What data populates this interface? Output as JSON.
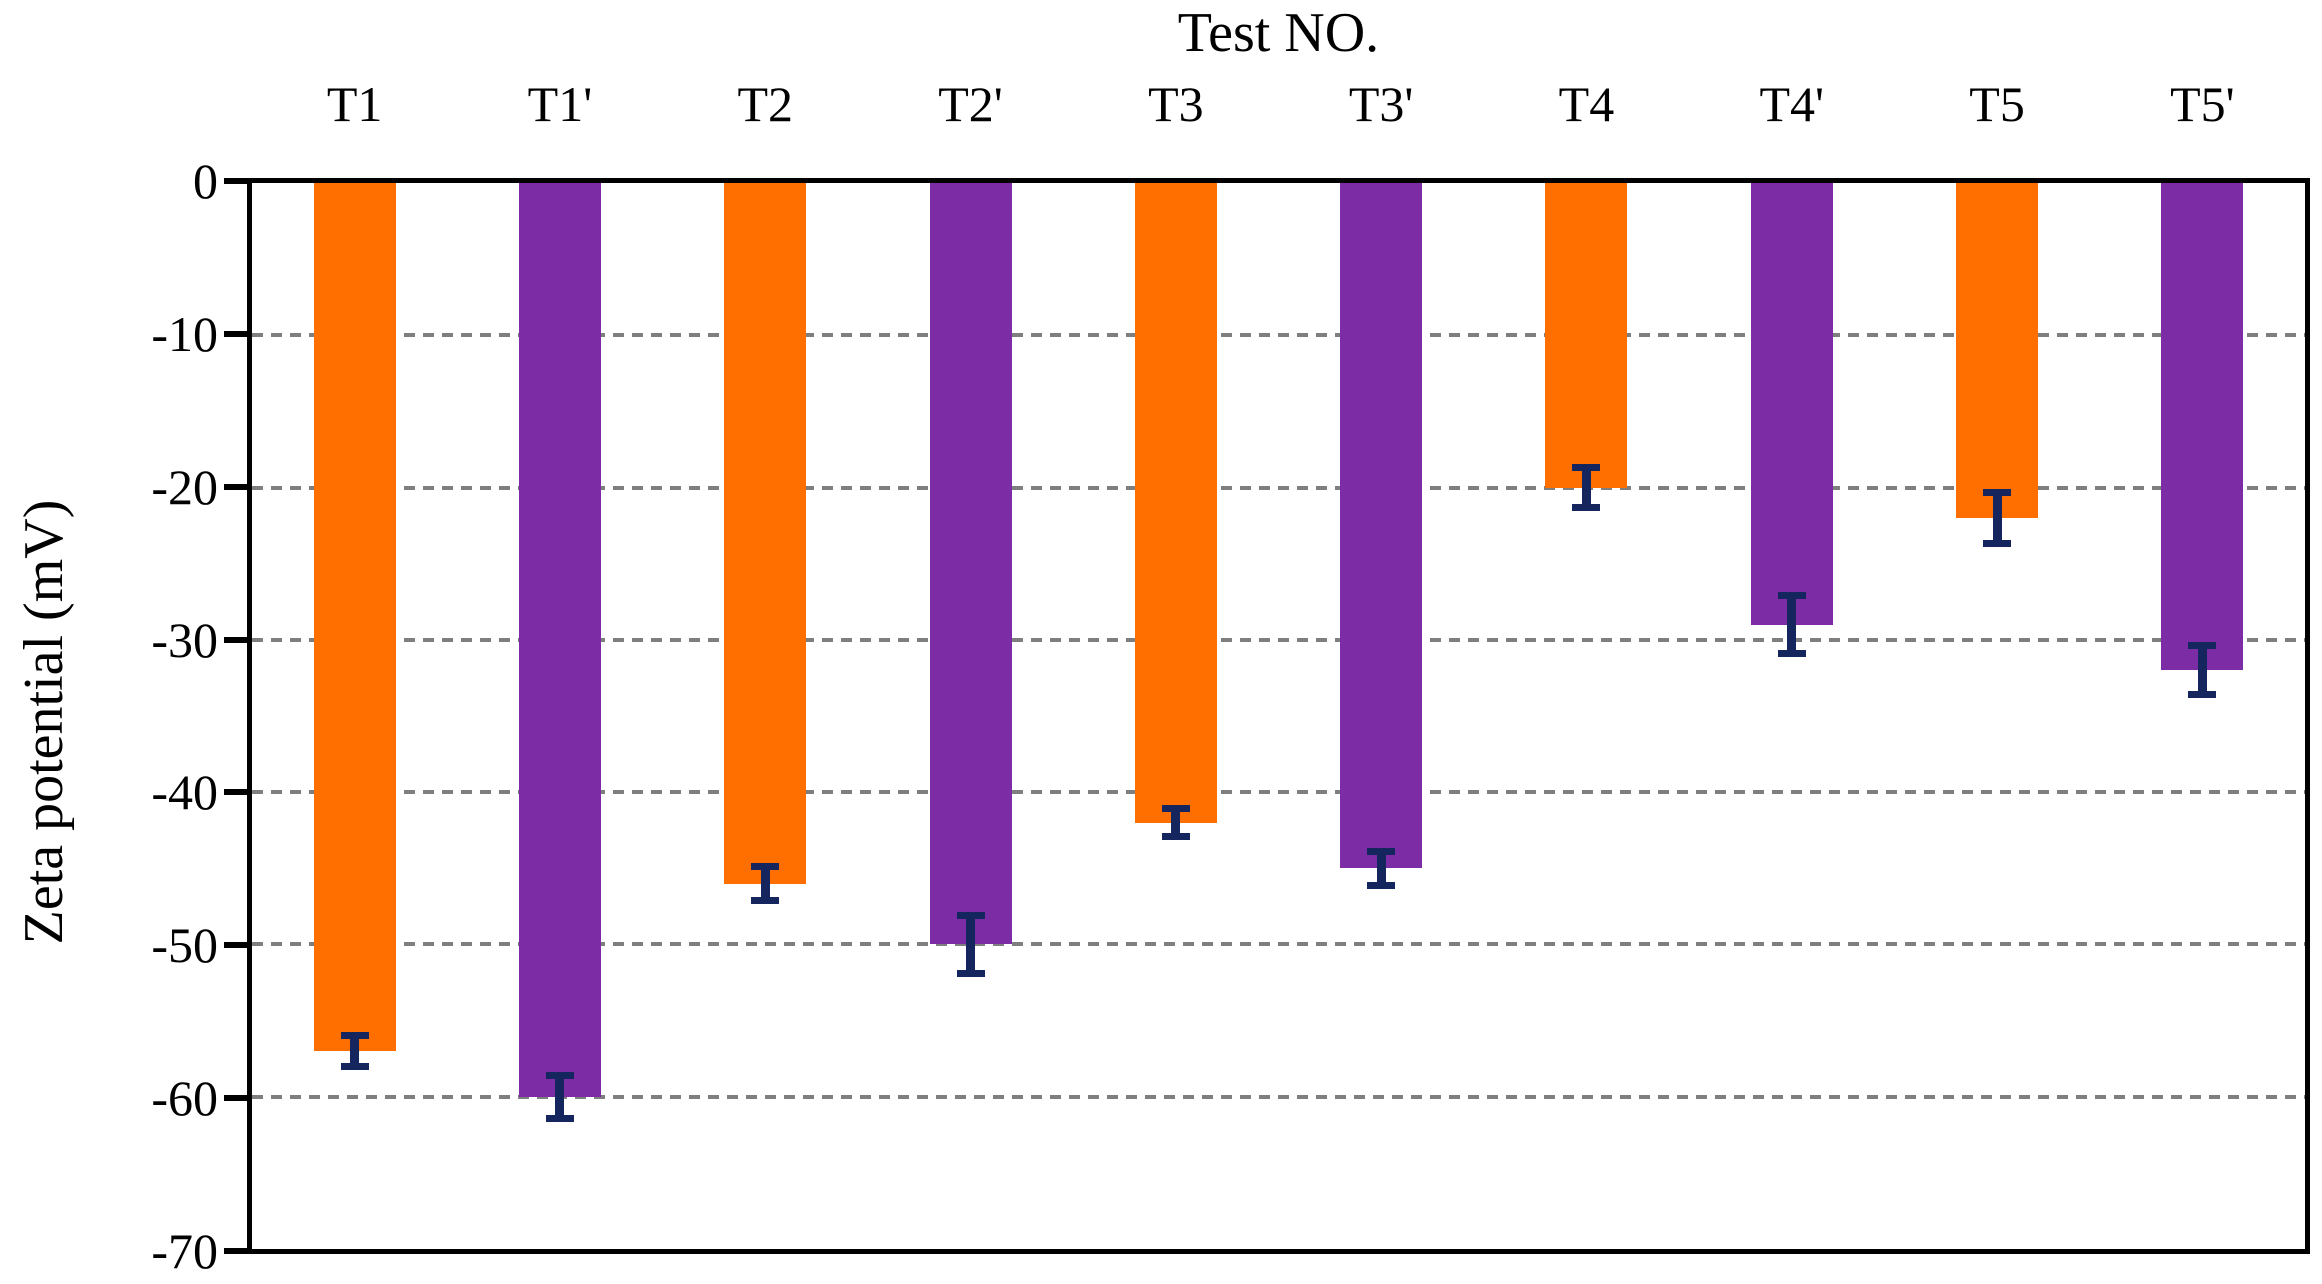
{
  "chart_data": {
    "type": "bar",
    "title": "Test NO.",
    "ylabel": "Zeta potential (mV)",
    "xlabel": "",
    "ylim": [
      0,
      -70
    ],
    "ytick_step": 10,
    "yticks": [
      0,
      -10,
      -20,
      -30,
      -40,
      -50,
      -60,
      -70
    ],
    "grid": "horizontal-dashed",
    "legend": "none",
    "categories": [
      "T1",
      "T1'",
      "T2",
      "T2'",
      "T3",
      "T3'",
      "T4",
      "T4'",
      "T5",
      "T5'"
    ],
    "points": [
      {
        "label": "T1",
        "value": -57,
        "error": 0.9,
        "color_key": "orange"
      },
      {
        "label": "T1'",
        "value": -60,
        "error": 1.3,
        "color_key": "purple"
      },
      {
        "label": "T2",
        "value": -46,
        "error": 1.0,
        "color_key": "purple_alt_orange",
        "color_key_fix": "orange"
      },
      {
        "label": "T2'",
        "value": -50,
        "error": 1.8,
        "color_key": "purple"
      },
      {
        "label": "T3",
        "value": -42,
        "error": 0.8,
        "color_key": "orange"
      },
      {
        "label": "T3'",
        "value": -45,
        "error": 1.0,
        "color_key": "purple"
      },
      {
        "label": "T4",
        "value": -20,
        "error": 1.2,
        "color_key": "orange"
      },
      {
        "label": "T4'",
        "value": -29,
        "error": 1.8,
        "color_key": "purple"
      },
      {
        "label": "T5",
        "value": -22,
        "error": 1.6,
        "color_key": "orange"
      },
      {
        "label": "T5'",
        "value": -32,
        "error": 1.5,
        "color_key": "purple"
      }
    ],
    "colors": {
      "orange": "#ff6f00",
      "purple": "#7c2ca4",
      "error_bar": "#15265e",
      "gridline": "#7f7f7f",
      "axis": "#000000",
      "background": "#ffffff"
    }
  }
}
